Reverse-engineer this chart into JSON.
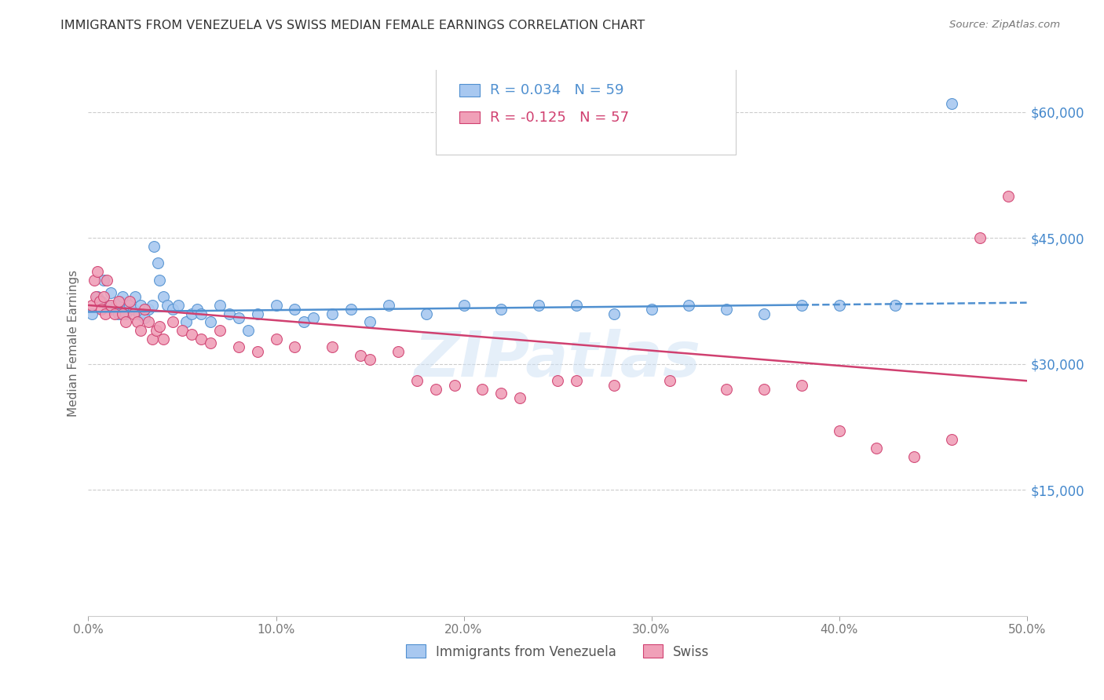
{
  "title": "IMMIGRANTS FROM VENEZUELA VS SWISS MEDIAN FEMALE EARNINGS CORRELATION CHART",
  "source": "Source: ZipAtlas.com",
  "ylabel": "Median Female Earnings",
  "xlim": [
    0,
    0.5
  ],
  "ylim": [
    0,
    65000
  ],
  "xtick_labels": [
    "0.0%",
    "10.0%",
    "20.0%",
    "30.0%",
    "40.0%",
    "50.0%"
  ],
  "xtick_values": [
    0.0,
    0.1,
    0.2,
    0.3,
    0.4,
    0.5
  ],
  "ytick_values": [
    0,
    15000,
    30000,
    45000,
    60000
  ],
  "legend_label1": "Immigrants from Venezuela",
  "legend_label2": "Swiss",
  "r1_val": "0.034",
  "n1_val": "59",
  "r2_val": "-0.125",
  "n2_val": "57",
  "color_blue": "#A8C8F0",
  "color_pink": "#F0A0B8",
  "line_color_blue": "#5090D0",
  "line_color_pink": "#D04070",
  "right_tick_color": "#4488CC",
  "watermark": "ZIPatlas",
  "blue_scatter_x": [
    0.002,
    0.005,
    0.007,
    0.008,
    0.01,
    0.012,
    0.013,
    0.015,
    0.016,
    0.017,
    0.018,
    0.02,
    0.022,
    0.024,
    0.025,
    0.027,
    0.028,
    0.03,
    0.032,
    0.034,
    0.035,
    0.037,
    0.038,
    0.04,
    0.042,
    0.045,
    0.048,
    0.052,
    0.055,
    0.058,
    0.06,
    0.065,
    0.07,
    0.075,
    0.08,
    0.085,
    0.09,
    0.1,
    0.11,
    0.115,
    0.12,
    0.13,
    0.14,
    0.15,
    0.16,
    0.18,
    0.2,
    0.22,
    0.24,
    0.26,
    0.28,
    0.3,
    0.32,
    0.34,
    0.36,
    0.38,
    0.4,
    0.43,
    0.46
  ],
  "blue_scatter_y": [
    36000,
    38000,
    37500,
    40000,
    37000,
    38500,
    36500,
    37000,
    36000,
    37500,
    38000,
    36000,
    37000,
    36500,
    38000,
    36000,
    37000,
    35500,
    36500,
    37000,
    44000,
    42000,
    40000,
    38000,
    37000,
    36500,
    37000,
    35000,
    36000,
    36500,
    36000,
    35000,
    37000,
    36000,
    35500,
    34000,
    36000,
    37000,
    36500,
    35000,
    35500,
    36000,
    36500,
    35000,
    37000,
    36000,
    37000,
    36500,
    37000,
    37000,
    36000,
    36500,
    37000,
    36500,
    36000,
    37000,
    37000,
    37000,
    61000
  ],
  "pink_scatter_x": [
    0.002,
    0.003,
    0.004,
    0.005,
    0.006,
    0.007,
    0.008,
    0.009,
    0.01,
    0.012,
    0.014,
    0.016,
    0.018,
    0.02,
    0.022,
    0.024,
    0.026,
    0.028,
    0.03,
    0.032,
    0.034,
    0.036,
    0.038,
    0.04,
    0.045,
    0.05,
    0.055,
    0.06,
    0.065,
    0.07,
    0.08,
    0.09,
    0.1,
    0.11,
    0.13,
    0.145,
    0.15,
    0.165,
    0.175,
    0.185,
    0.195,
    0.21,
    0.22,
    0.23,
    0.25,
    0.26,
    0.28,
    0.31,
    0.34,
    0.36,
    0.38,
    0.4,
    0.42,
    0.44,
    0.46,
    0.475,
    0.49
  ],
  "pink_scatter_y": [
    37000,
    40000,
    38000,
    41000,
    37500,
    36500,
    38000,
    36000,
    40000,
    37000,
    36000,
    37500,
    36000,
    35000,
    37500,
    36000,
    35000,
    34000,
    36500,
    35000,
    33000,
    34000,
    34500,
    33000,
    35000,
    34000,
    33500,
    33000,
    32500,
    34000,
    32000,
    31500,
    33000,
    32000,
    32000,
    31000,
    30500,
    31500,
    28000,
    27000,
    27500,
    27000,
    26500,
    26000,
    28000,
    28000,
    27500,
    28000,
    27000,
    27000,
    27500,
    22000,
    20000,
    19000,
    21000,
    45000,
    50000
  ]
}
